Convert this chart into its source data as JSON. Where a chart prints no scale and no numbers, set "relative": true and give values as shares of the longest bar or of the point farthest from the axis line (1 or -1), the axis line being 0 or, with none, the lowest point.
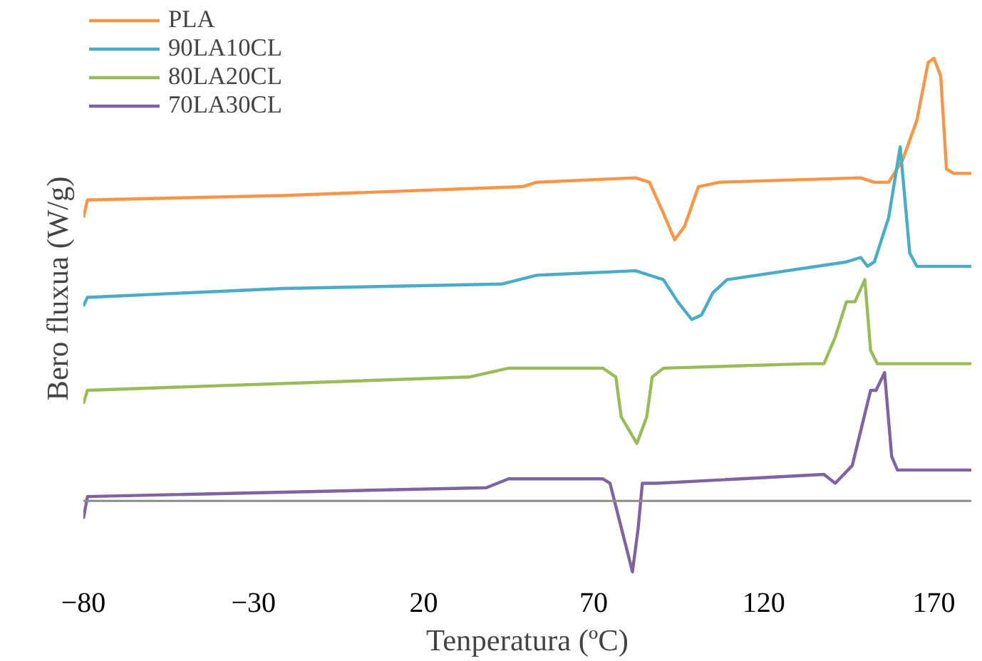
{
  "chart_data": {
    "type": "line",
    "relative": true,
    "xlabel": "Tenperatura (ºC)",
    "ylabel": "Bero fluxua (W/g)",
    "xlim": [
      -80,
      181
    ],
    "xticks": [
      -80,
      -30,
      20,
      70,
      120,
      170
    ],
    "legend": "top left",
    "grid": false,
    "series": [
      {
        "name": "PLA",
        "color": "#f79646",
        "x": [
          -80,
          -78.8,
          -21.2,
          49.1,
          53.3,
          82.3,
          86.4,
          90.5,
          93.8,
          96.7,
          100.8,
          107.0,
          148.4,
          152.5,
          156.7,
          160.8,
          165.0,
          168.3,
          170,
          172.0,
          173.7,
          175.8,
          181
        ],
        "values": [
          0.64,
          0.68,
          0.69,
          0.71,
          0.72,
          0.73,
          0.72,
          0.65,
          0.59,
          0.62,
          0.71,
          0.72,
          0.73,
          0.72,
          0.72,
          0.77,
          0.86,
          0.99,
          1,
          0.96,
          0.75,
          0.74,
          0.74
        ]
      },
      {
        "name": "90LA10CL",
        "color": "#4bacc6",
        "x": [
          -80,
          -78.8,
          -21.2,
          42.9,
          53.3,
          82.3,
          90.5,
          94.7,
          98.8,
          101.7,
          105.0,
          109.2,
          144.3,
          148.5,
          150.5,
          152.5,
          156.7,
          160.1,
          162.9,
          165.0,
          181
        ],
        "values": [
          0.44,
          0.46,
          0.48,
          0.49,
          0.51,
          0.52,
          0.5,
          0.45,
          0.41,
          0.42,
          0.47,
          0.5,
          0.54,
          0.55,
          0.53,
          0.54,
          0.64,
          0.8,
          0.56,
          0.53,
          0.53
        ]
      },
      {
        "name": "80LA20CL",
        "color": "#9bbb59",
        "x": [
          -80,
          -78.8,
          33.4,
          45.0,
          72.7,
          76.5,
          78.1,
          82.7,
          85.6,
          87.2,
          90.5,
          133.2,
          137.7,
          141.0,
          144.3,
          146.8,
          149.7,
          151.4,
          153.4,
          181
        ],
        "values": [
          0.22,
          0.25,
          0.28,
          0.3,
          0.3,
          0.28,
          0.19,
          0.13,
          0.19,
          0.28,
          0.3,
          0.31,
          0.31,
          0.37,
          0.45,
          0.45,
          0.5,
          0.34,
          0.31,
          0.31
        ]
      },
      {
        "name": "70LA30CL",
        "color": "#8064a2",
        "x": [
          -80,
          -78.8,
          38.4,
          45.0,
          72.7,
          74.8,
          78.1,
          81.4,
          83.1,
          84.3,
          88.5,
          137.7,
          141.0,
          146.0,
          151.4,
          153.0,
          155.5,
          157.6,
          159.3,
          181
        ],
        "values": [
          -0.04,
          0.01,
          0.03,
          0.05,
          0.05,
          0.04,
          -0.06,
          -0.16,
          -0.06,
          0.04,
          0.04,
          0.06,
          0.04,
          0.08,
          0.25,
          0.25,
          0.29,
          0.1,
          0.07,
          0.07
        ]
      }
    ]
  }
}
